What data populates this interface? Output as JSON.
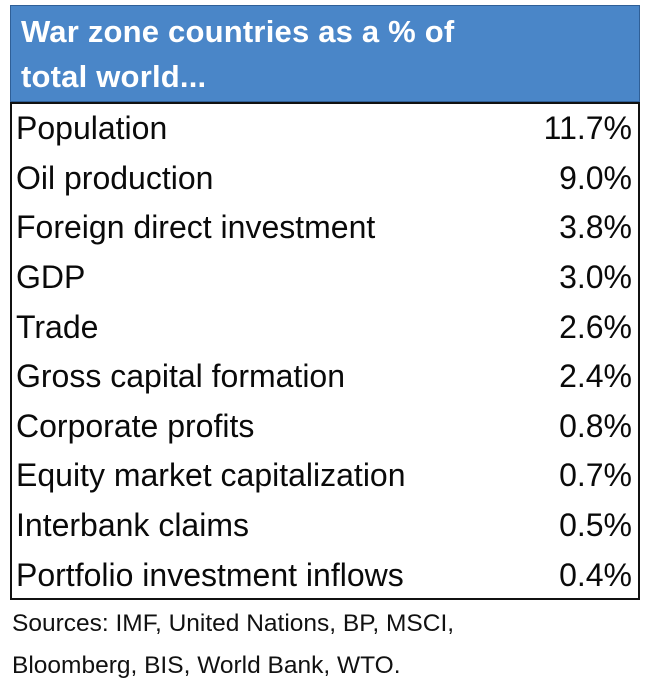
{
  "title": "War zone countries as a % of total world...",
  "title_lines": [
    "War zone countries as a % of",
    "total world..."
  ],
  "chart_data": {
    "type": "table",
    "title": "War zone countries as a % of total world...",
    "categories": [
      "Population",
      "Oil production",
      "Foreign direct investment",
      "GDP",
      "Trade",
      "Gross capital formation",
      "Corporate profits",
      "Equity market capitalization",
      "Interbank claims",
      "Portfolio investment inflows"
    ],
    "values": [
      11.7,
      9.0,
      3.8,
      3.0,
      2.6,
      2.4,
      0.8,
      0.7,
      0.5,
      0.4
    ],
    "value_labels": [
      "11.7%",
      "9.0%",
      "3.8%",
      "3.0%",
      "2.6%",
      "2.4%",
      "0.8%",
      "0.7%",
      "0.5%",
      "0.4%"
    ]
  },
  "sources": [
    "Sources: IMF, United Nations, BP, MSCI,",
    "Bloomberg, BIS, World Bank, WTO."
  ],
  "colors": {
    "header_bg": "#4a86c8",
    "header_text": "#ffffff",
    "text": "#0a0a0a"
  }
}
